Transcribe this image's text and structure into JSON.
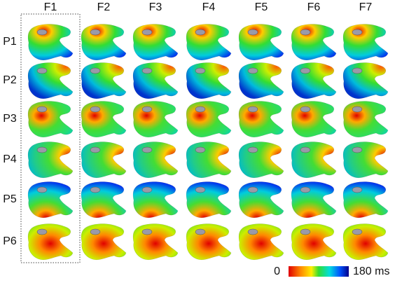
{
  "columns": [
    "F1",
    "F2",
    "F3",
    "F4",
    "F5",
    "F6",
    "F7"
  ],
  "rows": [
    "P1",
    "P2",
    "P3",
    "P4",
    "P5",
    "P6"
  ],
  "colorbar": {
    "min_label": "0",
    "max_label": "180 ms"
  }
}
